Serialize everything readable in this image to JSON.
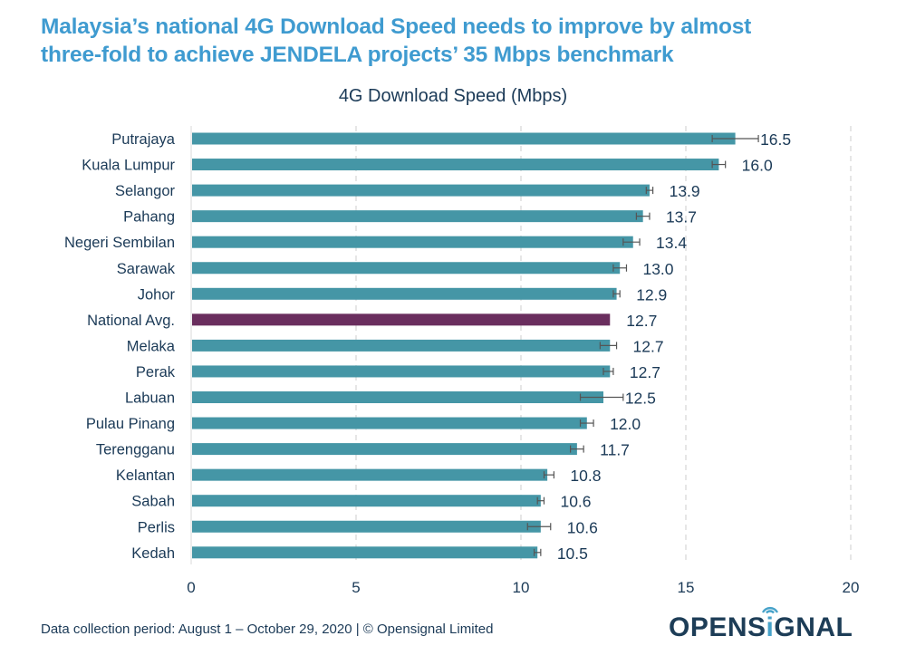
{
  "header": {
    "title_line1": "Malaysia’s national 4G Download Speed needs to improve by almost",
    "title_line2": "three-fold to achieve JENDELA projects’ 35 Mbps benchmark"
  },
  "colors": {
    "title": "#3f9bd0",
    "text": "#1b3a57",
    "bar": "#4596a6",
    "highlight_bar": "#6a2e5e",
    "error_bar": "#555555",
    "grid": "#cccccc"
  },
  "chart_data": {
    "type": "bar",
    "orientation": "horizontal",
    "title": "4G Download Speed (Mbps)",
    "xlabel": "",
    "ylabel": "",
    "xlim": [
      0,
      20
    ],
    "xticks": [
      0,
      5,
      10,
      15,
      20
    ],
    "grid": "vertical dashed",
    "categories": [
      "Putrajaya",
      "Kuala Lumpur",
      "Selangor",
      "Pahang",
      "Negeri Sembilan",
      "Sarawak",
      "Johor",
      "National Avg.",
      "Melaka",
      "Perak",
      "Labuan",
      "Pulau Pinang",
      "Terengganu",
      "Kelantan",
      "Sabah",
      "Perlis",
      "Kedah"
    ],
    "values": [
      16.5,
      16.0,
      13.9,
      13.7,
      13.4,
      13.0,
      12.9,
      12.7,
      12.7,
      12.7,
      12.5,
      12.0,
      11.7,
      10.8,
      10.6,
      10.6,
      10.5
    ],
    "labels": [
      "16.5",
      "16.0",
      "13.9",
      "13.7",
      "13.4",
      "13.0",
      "12.9",
      "12.7",
      "12.7",
      "12.7",
      "12.5",
      "12.0",
      "11.7",
      "10.8",
      "10.6",
      "10.6",
      "10.5"
    ],
    "error_low": [
      15.8,
      15.8,
      13.8,
      13.5,
      13.1,
      12.8,
      12.8,
      12.7,
      12.4,
      12.5,
      11.8,
      11.8,
      11.5,
      10.7,
      10.5,
      10.2,
      10.4
    ],
    "error_high": [
      17.2,
      16.2,
      14.0,
      13.9,
      13.6,
      13.2,
      13.0,
      12.7,
      12.9,
      12.8,
      13.1,
      12.2,
      11.9,
      11.0,
      10.7,
      10.9,
      10.6
    ],
    "highlight": "National Avg."
  },
  "footer": {
    "note": "Data collection period: August 1 – October 29, 2020 | © Opensignal Limited",
    "logo_prefix": "OPENS",
    "logo_i": "i",
    "logo_suffix": "GNAL"
  }
}
